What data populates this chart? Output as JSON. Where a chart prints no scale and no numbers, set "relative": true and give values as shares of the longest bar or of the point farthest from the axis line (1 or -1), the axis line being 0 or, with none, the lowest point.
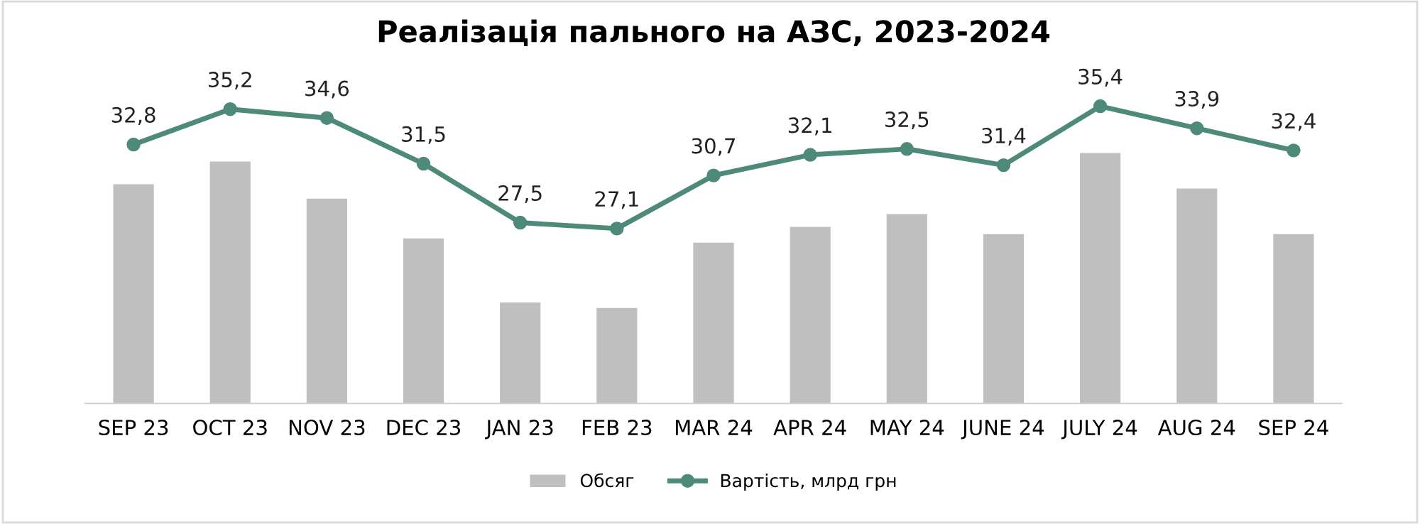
{
  "chart_data": [
    {
      "type": "bar",
      "title": "Реалізація пального на АЗС, 2023-2024",
      "categories": [
        "SEP 23",
        "OCT 23",
        "NOV 23",
        "DEC 23",
        "JAN 23",
        "FEB 23",
        "MAR 24",
        "APR 24",
        "MAY 24",
        "JUNE 24",
        "JULY 24",
        "AUG 24",
        "SEP 24"
      ],
      "relative": true,
      "tick_labels": "x",
      "legend": "bottom",
      "series": [
        {
          "name": "Обсяг",
          "color": "#bfbfbf",
          "values": [
            0.875,
            0.966,
            0.818,
            0.659,
            0.403,
            0.381,
            0.642,
            0.705,
            0.756,
            0.676,
            1,
            0.858,
            0.676
          ]
        }
      ]
    },
    {
      "type": "line",
      "tick_labels": false,
      "data_labels": true,
      "marker": "circle",
      "line_style": "solid",
      "series": [
        {
          "name": "Вартість, млрд грн",
          "color": "#4e8a7a",
          "values": [
            32.8,
            35.2,
            34.6,
            31.5,
            27.5,
            27.1,
            30.7,
            32.1,
            32.5,
            31.4,
            35.4,
            33.9,
            32.4
          ],
          "value_labels": [
            "32,8",
            "35,2",
            "34,6",
            "31,5",
            "27,5",
            "27,1",
            "30,7",
            "32,1",
            "32,5",
            "31,4",
            "35,4",
            "33,9",
            "32,4"
          ]
        }
      ]
    }
  ]
}
